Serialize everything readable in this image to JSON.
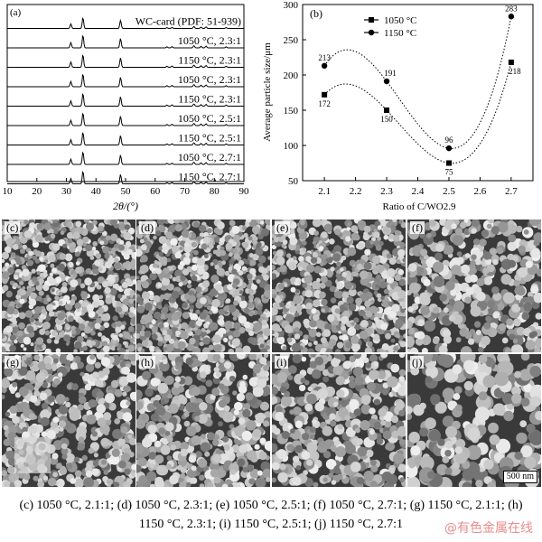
{
  "figure": {
    "panel_a": {
      "label": "(a)",
      "traces": [
        "WC-card (PDF: 51-939)",
        "1050 °C, 2.3:1",
        "1150 °C, 2.3:1",
        "1050 °C, 2.3:1",
        "1150 °C, 2.3:1",
        "1050 °C, 2.5:1",
        "1150 °C, 2.5:1",
        "1050 °C, 2.7:1",
        "1150 °C, 2.7:1"
      ],
      "xticks": [
        "10",
        "20",
        "30",
        "40",
        "50",
        "60",
        "70",
        "80",
        "90"
      ],
      "xlabel": "2θ/(°)",
      "peaks": [
        31.5,
        35.6,
        48.3,
        64.0,
        65.7,
        73.1,
        75.5,
        77.2,
        84.0
      ]
    },
    "panel_b": {
      "label": "(b)",
      "ylabel": "Average particle size/μm",
      "xlabel": "Ratio of C/WO2.9",
      "legend": [
        "1050 °C",
        "1150 °C"
      ]
    },
    "sem_panels": [
      "(c)",
      "(d)",
      "(e)",
      "(f)",
      "(g)",
      "(h)",
      "(i)",
      "(j)"
    ],
    "scale_bar": "500 nm",
    "caption": "(c) 1050 °C, 2.1:1; (d) 1050 °C, 2.3:1; (e) 1050 °C, 2.5:1; (f) 1050 °C, 2.7:1; (g) 1150 °C, 2.1:1; (h) 1150 °C, 2.3:1; (i) 1150 °C, 2.5:1; (j) 1150 °C, 2.7:1",
    "watermark": "@有色金属在线"
  },
  "chart_data": [
    {
      "type": "line",
      "x": [
        10,
        20,
        30,
        40,
        50,
        60,
        70,
        80,
        90
      ],
      "xlim": [
        10,
        90
      ],
      "series": [
        {
          "name": "WC-card (PDF: 51-939)"
        },
        {
          "name": "1050 °C, 2.3:1"
        },
        {
          "name": "1150 °C, 2.3:1"
        },
        {
          "name": "1050 °C, 2.3:1"
        },
        {
          "name": "1150 °C, 2.3:1"
        },
        {
          "name": "1050 °C, 2.5:1"
        },
        {
          "name": "1150 °C, 2.5:1"
        },
        {
          "name": "1050 °C, 2.7:1"
        },
        {
          "name": "1150 °C, 2.7:1"
        }
      ],
      "xlabel": "2θ/(°)"
    },
    {
      "type": "line",
      "x": [
        2.1,
        2.3,
        2.5,
        2.7
      ],
      "xticks": [
        "2.1",
        "2.2",
        "2.3",
        "2.4",
        "2.5",
        "2.6",
        "2.7"
      ],
      "yticks": [
        "50",
        "100",
        "150",
        "200",
        "250",
        "300"
      ],
      "xlim": [
        2.03,
        2.77
      ],
      "ylim": [
        50,
        300
      ],
      "series": [
        {
          "name": "1050 °C",
          "values": [
            172,
            150,
            75,
            218
          ],
          "marker": "square"
        },
        {
          "name": "1150 °C",
          "values": [
            213,
            191,
            96,
            283
          ],
          "marker": "circle"
        }
      ],
      "xlabel": "Ratio of C/WO2.9",
      "ylabel": "Average particle size/μm",
      "legend_position": "top-center",
      "grid": false
    }
  ]
}
